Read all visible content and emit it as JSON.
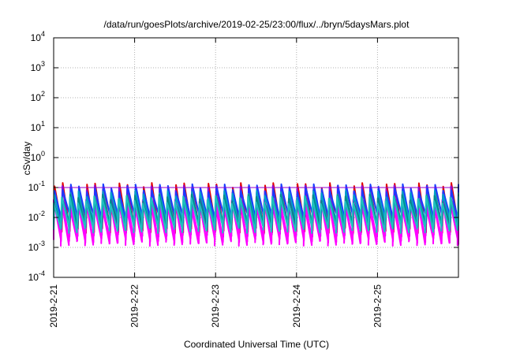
{
  "chart_data": {
    "type": "line",
    "title": "/data/run/goesPlots/archive/2019-02-25/23:00/flux/../bryn/5daysMars.plot",
    "xlabel": "Coordinated Universal Time (UTC)",
    "ylabel": "cSv/day",
    "yscale": "log",
    "ylim": [
      0.0001,
      10000
    ],
    "xlim": [
      "2019-02-21T00:00",
      "2019-02-26T00:00"
    ],
    "x_ticks": [
      "2019-2-21",
      "2019-2-22",
      "2019-2-23",
      "2019-2-24",
      "2019-2-25"
    ],
    "y_ticks": [
      {
        "value": 0.0001,
        "base": "10",
        "exp": "-4"
      },
      {
        "value": 0.001,
        "base": "10",
        "exp": "-3"
      },
      {
        "value": 0.01,
        "base": "10",
        "exp": "-2"
      },
      {
        "value": 0.1,
        "base": "10",
        "exp": "-1"
      },
      {
        "value": 1,
        "base": "10",
        "exp": "0"
      },
      {
        "value": 10,
        "base": "10",
        "exp": "1"
      },
      {
        "value": 100,
        "base": "10",
        "exp": "2"
      },
      {
        "value": 1000,
        "base": "10",
        "exp": "3"
      },
      {
        "value": 10000,
        "base": "10",
        "exp": "4"
      }
    ],
    "grid": true,
    "legend": "none",
    "reference_line": 0.1,
    "cycle_hours": 2.4,
    "series": [
      {
        "color": "#e00000",
        "peak": 0.11,
        "trough": 0.004
      },
      {
        "color": "#9400d3",
        "peak": 0.09,
        "trough": 0.003
      },
      {
        "color": "#ff00ff",
        "peak": 0.035,
        "trough": 0.0018
      },
      {
        "color": "#ff00ff",
        "peak": 0.03,
        "trough": 0.0015
      },
      {
        "color": "#1a3cff",
        "peak": 0.1,
        "trough": 0.009
      },
      {
        "color": "#00a0c8",
        "peak": 0.06,
        "trough": 0.006
      },
      {
        "color": "#008b8b",
        "peak": 0.045,
        "trough": 0.005
      },
      {
        "color": "#20c0c0",
        "peak": 0.04,
        "trough": 0.004
      }
    ]
  }
}
